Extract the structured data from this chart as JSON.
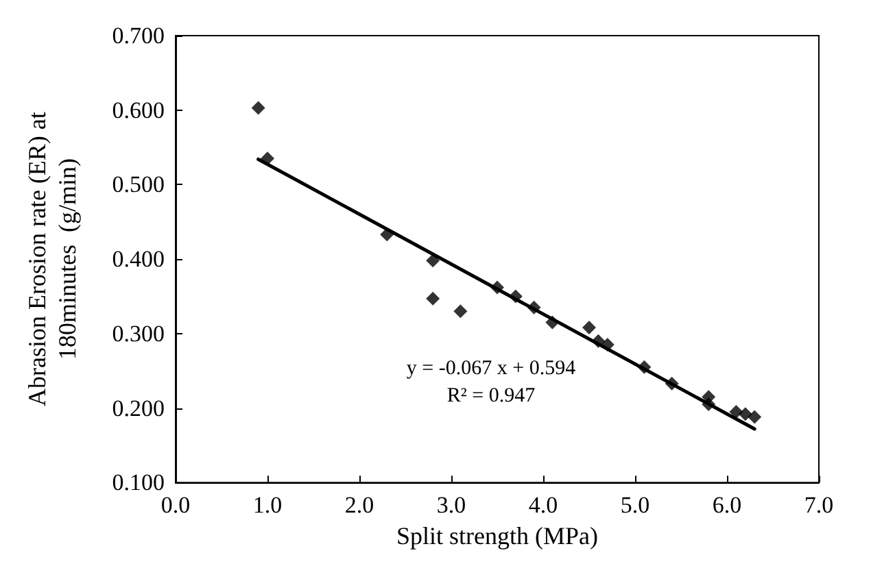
{
  "chart_data": {
    "type": "scatter",
    "xlabel": "Split strength (MPa)",
    "ylabel": "Abrasion Erosion rate (ER) at\n180minutes  (g/min)",
    "x": [
      0.9,
      1.0,
      2.3,
      2.8,
      2.8,
      3.1,
      3.5,
      3.7,
      3.9,
      4.1,
      4.5,
      4.6,
      4.7,
      5.1,
      5.4,
      5.8,
      5.8,
      6.1,
      6.2,
      6.3
    ],
    "series": [
      {
        "color": "#000000",
        "marker": "diamond",
        "values": [
          0.603,
          0.535,
          0.433,
          0.398,
          0.347,
          0.33,
          0.362,
          0.35,
          0.335,
          0.315,
          0.308,
          0.29,
          0.285,
          0.255,
          0.233,
          0.215,
          0.205,
          0.195,
          0.192,
          0.188
        ]
      },
      {
        "type": "line",
        "color": "#000000",
        "line_style": "solid",
        "marker": "none",
        "x": [
          0.9,
          6.3
        ],
        "values": [
          0.534,
          0.172
        ]
      }
    ],
    "xlim": [
      0,
      7
    ],
    "xticks": [
      {
        "value": 0,
        "label": "0.0"
      },
      {
        "value": 1,
        "label": "1.0"
      },
      {
        "value": 2,
        "label": "2.0"
      },
      {
        "value": 3,
        "label": "3.0"
      },
      {
        "value": 4,
        "label": "4.0"
      },
      {
        "value": 5,
        "label": "5.0"
      },
      {
        "value": 6,
        "label": "6.0"
      },
      {
        "value": 7,
        "label": "7.0"
      }
    ],
    "ylim": [
      0.1,
      0.7
    ],
    "yticks": [
      {
        "value": 0.1,
        "label": "0.100"
      },
      {
        "value": 0.2,
        "label": "0.200"
      },
      {
        "value": 0.3,
        "label": "0.300"
      },
      {
        "value": 0.4,
        "label": "0.400"
      },
      {
        "value": 0.5,
        "label": "0.500"
      },
      {
        "value": 0.6,
        "label": "0.600"
      },
      {
        "value": 0.7,
        "label": "0.700"
      }
    ],
    "annotations": [
      "y = -0.067 x + 0.594",
      "R² = 0.947"
    ],
    "grid": false
  }
}
